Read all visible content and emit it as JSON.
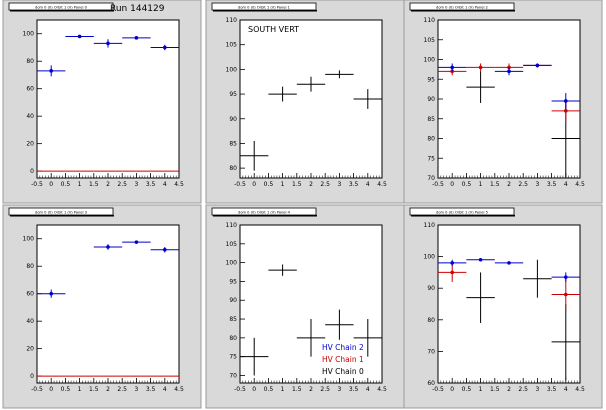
{
  "run_title": "Run 144129",
  "colors": {
    "chain2": "#0000cc",
    "chain1": "#cc0000",
    "chain0": "#000000",
    "frame_bg": "#d9d9d9",
    "plot_bg": "#ffffff"
  },
  "chart_data": [
    {
      "type": "scatter",
      "title": "dom 0 (0) Orbit 1 (V) Panel 0",
      "text": "",
      "xlim": [
        -0.5,
        4.5
      ],
      "ylim": [
        -5,
        110
      ],
      "xticks": [
        "-0.5",
        "0",
        "0.5",
        "1",
        "1.5",
        "2",
        "2.5",
        "3",
        "3.5",
        "4",
        "4.5"
      ],
      "yticks": [
        0,
        20,
        40,
        60,
        80,
        100
      ],
      "series": [
        {
          "color": "chain2",
          "marker": true,
          "points": [
            {
              "x": 0,
              "y": 73,
              "ex": 0.5,
              "ey": 4
            },
            {
              "x": 1,
              "y": 98,
              "ex": 0.5,
              "ey": 1
            },
            {
              "x": 2,
              "y": 93,
              "ex": 0.5,
              "ey": 3
            },
            {
              "x": 3,
              "y": 97,
              "ex": 0.5,
              "ey": 1
            },
            {
              "x": 4,
              "y": 90,
              "ex": 0.5,
              "ey": 2
            }
          ]
        },
        {
          "color": "chain1",
          "marker": false,
          "points": [
            {
              "x": 0,
              "y": 0,
              "ex": 0.5,
              "ey": 0
            },
            {
              "x": 1,
              "y": 0,
              "ex": 0.5,
              "ey": 0
            },
            {
              "x": 2,
              "y": 0,
              "ex": 0.5,
              "ey": 0
            },
            {
              "x": 3,
              "y": 0,
              "ex": 0.5,
              "ey": 0
            },
            {
              "x": 4,
              "y": 0,
              "ex": 0.5,
              "ey": 0
            }
          ]
        }
      ]
    },
    {
      "type": "scatter",
      "title": "dom 0 (0) Orbit 1 (V) Panel 1",
      "text": "SOUTH VERT",
      "xlim": [
        -0.5,
        4.5
      ],
      "ylim": [
        78,
        110
      ],
      "xticks": [
        "-0.5",
        "0",
        "0.5",
        "1",
        "1.5",
        "2",
        "2.5",
        "3",
        "3.5",
        "4",
        "4.5"
      ],
      "yticks": [
        80,
        85,
        90,
        95,
        100,
        105,
        110
      ],
      "series": [
        {
          "color": "chain0",
          "marker": false,
          "points": [
            {
              "x": 0,
              "y": 82.5,
              "ex": 0.5,
              "ey": 3
            },
            {
              "x": 1,
              "y": 95,
              "ex": 0.5,
              "ey": 1.5
            },
            {
              "x": 2,
              "y": 97,
              "ex": 0.5,
              "ey": 1.5
            },
            {
              "x": 3,
              "y": 99,
              "ex": 0.5,
              "ey": 0.8
            },
            {
              "x": 4,
              "y": 94,
              "ex": 0.5,
              "ey": 2
            }
          ]
        }
      ]
    },
    {
      "type": "scatter",
      "title": "dom 0 (0) Orbit 1 (V) Panel 2",
      "text": "",
      "xlim": [
        -0.5,
        4.5
      ],
      "ylim": [
        70,
        110
      ],
      "xticks": [
        "-0.5",
        "0",
        "0.5",
        "1",
        "1.5",
        "2",
        "2.5",
        "3",
        "3.5",
        "4",
        "4.5"
      ],
      "yticks": [
        70,
        75,
        80,
        85,
        90,
        95,
        100,
        105,
        110
      ],
      "series": [
        {
          "color": "chain0",
          "marker": false,
          "points": [
            {
              "x": 1,
              "y": 93,
              "ex": 0.5,
              "ey": 4
            },
            {
              "x": 4,
              "y": 80,
              "ex": 0.5,
              "ey": 10
            }
          ]
        },
        {
          "color": "chain1",
          "marker": true,
          "points": [
            {
              "x": 0,
              "y": 97,
              "ex": 0.5,
              "ey": 1
            },
            {
              "x": 1,
              "y": 98,
              "ex": 0.5,
              "ey": 1
            },
            {
              "x": 2,
              "y": 98,
              "ex": 0.5,
              "ey": 1
            },
            {
              "x": 3,
              "y": 98.5,
              "ex": 0.5,
              "ey": 0.5
            },
            {
              "x": 4,
              "y": 87,
              "ex": 0.5,
              "ey": 3
            }
          ]
        },
        {
          "color": "chain2",
          "marker": true,
          "points": [
            {
              "x": 0,
              "y": 98,
              "ex": 0.5,
              "ey": 1
            },
            {
              "x": 2,
              "y": 97,
              "ex": 0.5,
              "ey": 1
            },
            {
              "x": 3,
              "y": 98.5,
              "ex": 0.5,
              "ey": 0.5
            },
            {
              "x": 4,
              "y": 89.5,
              "ex": 0.5,
              "ey": 2
            }
          ]
        }
      ]
    },
    {
      "type": "scatter",
      "title": "dom 0 (0) Orbit 1 (V) Panel 3",
      "text": "",
      "xlim": [
        -0.5,
        4.5
      ],
      "ylim": [
        -5,
        110
      ],
      "xticks": [
        "-0.5",
        "0",
        "0.5",
        "1",
        "1.5",
        "2",
        "2.5",
        "3",
        "3.5",
        "4",
        "4.5"
      ],
      "yticks": [
        0,
        20,
        40,
        60,
        80,
        100
      ],
      "series": [
        {
          "color": "chain2",
          "marker": true,
          "points": [
            {
              "x": 0,
              "y": 60,
              "ex": 0.5,
              "ey": 3
            },
            {
              "x": 2,
              "y": 94,
              "ex": 0.5,
              "ey": 2
            },
            {
              "x": 3,
              "y": 97.5,
              "ex": 0.5,
              "ey": 1
            },
            {
              "x": 4,
              "y": 92,
              "ex": 0.5,
              "ey": 2
            }
          ]
        },
        {
          "color": "chain1",
          "marker": false,
          "points": [
            {
              "x": 0,
              "y": 0,
              "ex": 0.5,
              "ey": 0
            },
            {
              "x": 1,
              "y": 0,
              "ex": 0.5,
              "ey": 0
            },
            {
              "x": 2,
              "y": 0,
              "ex": 0.5,
              "ey": 0
            },
            {
              "x": 3,
              "y": 0,
              "ex": 0.5,
              "ey": 0
            },
            {
              "x": 4,
              "y": 0,
              "ex": 0.5,
              "ey": 0
            }
          ]
        }
      ]
    },
    {
      "type": "scatter",
      "title": "dom 0 (0) Orbit 1 (V) Panel 4",
      "text": "",
      "xlim": [
        -0.5,
        4.5
      ],
      "ylim": [
        68,
        110
      ],
      "xticks": [
        "-0.5",
        "0",
        "0.5",
        "1",
        "1.5",
        "2",
        "2.5",
        "3",
        "3.5",
        "4",
        "4.5"
      ],
      "yticks": [
        70,
        75,
        80,
        85,
        90,
        95,
        100,
        105,
        110
      ],
      "series": [
        {
          "color": "chain0",
          "marker": false,
          "points": [
            {
              "x": 0,
              "y": 75,
              "ex": 0.5,
              "ey": 5
            },
            {
              "x": 1,
              "y": 98,
              "ex": 0.5,
              "ey": 1.5
            },
            {
              "x": 2,
              "y": 80,
              "ex": 0.5,
              "ey": 5
            },
            {
              "x": 3,
              "y": 83.5,
              "ex": 0.5,
              "ey": 4
            },
            {
              "x": 4,
              "y": 80,
              "ex": 0.5,
              "ey": 5
            }
          ]
        }
      ]
    },
    {
      "type": "scatter",
      "title": "dom 0 (0) Orbit 1 (V) Panel 5",
      "text": "",
      "xlim": [
        -0.5,
        4.5
      ],
      "ylim": [
        60,
        110
      ],
      "xticks": [
        "-0.5",
        "0",
        "0.5",
        "1",
        "1.5",
        "2",
        "2.5",
        "3",
        "3.5",
        "4",
        "4.5"
      ],
      "yticks": [
        60,
        70,
        80,
        90,
        100,
        110
      ],
      "series": [
        {
          "color": "chain0",
          "marker": false,
          "points": [
            {
              "x": 1,
              "y": 87,
              "ex": 0.5,
              "ey": 8
            },
            {
              "x": 3,
              "y": 93,
              "ex": 0.5,
              "ey": 6
            },
            {
              "x": 4,
              "y": 73,
              "ex": 0.5,
              "ey": 12
            }
          ]
        },
        {
          "color": "chain1",
          "marker": true,
          "points": [
            {
              "x": 0,
              "y": 95,
              "ex": 0.5,
              "ey": 3
            },
            {
              "x": 4,
              "y": 88,
              "ex": 0.5,
              "ey": 5
            }
          ]
        },
        {
          "color": "chain2",
          "marker": true,
          "points": [
            {
              "x": 0,
              "y": 98,
              "ex": 0.5,
              "ey": 1
            },
            {
              "x": 1,
              "y": 99,
              "ex": 0.5,
              "ey": 0.5
            },
            {
              "x": 2,
              "y": 98,
              "ex": 0.5,
              "ey": 0.5
            },
            {
              "x": 4,
              "y": 93.5,
              "ex": 0.5,
              "ey": 1.5
            }
          ]
        }
      ]
    }
  ],
  "legend": [
    {
      "label": "HV Chain 2",
      "color": "chain2"
    },
    {
      "label": "HV Chain 1",
      "color": "chain1"
    },
    {
      "label": "HV Chain 0",
      "color": "chain0"
    }
  ]
}
